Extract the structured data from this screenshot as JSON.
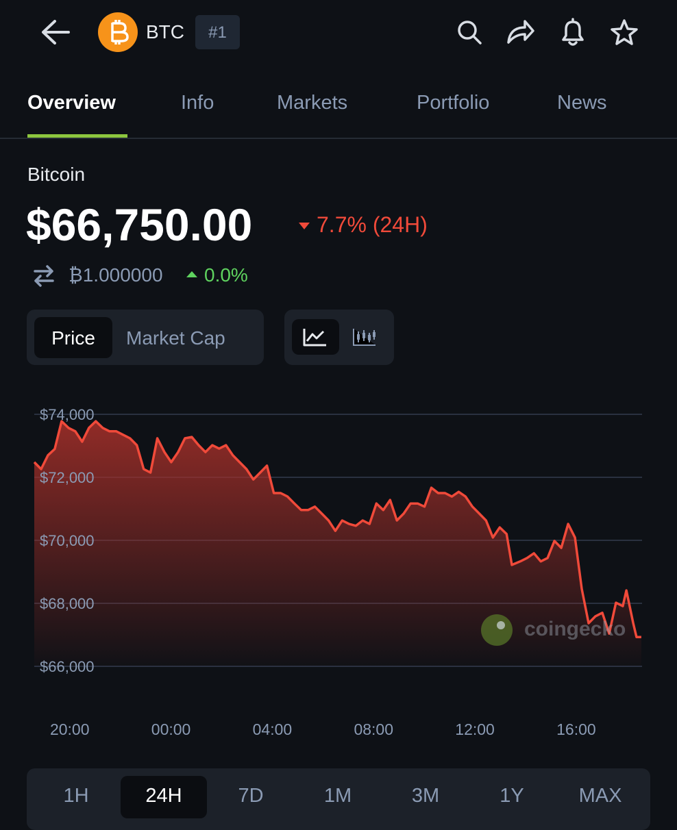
{
  "header": {
    "symbol": "BTC",
    "rank": "#1"
  },
  "tabs": [
    "Overview",
    "Info",
    "Markets",
    "Portfolio",
    "News"
  ],
  "coin": {
    "name": "Bitcoin",
    "price": "$66,750.00",
    "change": "7.7% (24H)",
    "btc_price": "₿1.000000",
    "btc_change": "0.0%"
  },
  "chart_toggle": [
    "Price",
    "Market Cap"
  ],
  "watermark": "coingecko",
  "ranges": [
    "1H",
    "24H",
    "7D",
    "1M",
    "3M",
    "1Y",
    "MAX"
  ],
  "chart_data": {
    "type": "area",
    "color": "#f04a3a",
    "grid": true,
    "x": [
      18.6,
      18.87,
      19.14,
      19.41,
      19.68,
      19.95,
      20.22,
      20.49,
      20.76,
      21.03,
      21.3,
      21.57,
      21.84,
      22.11,
      22.38,
      22.65,
      22.92,
      23.19,
      23.46,
      23.74,
      24.01,
      24.28,
      24.55,
      24.82,
      25.09,
      25.36,
      25.63,
      25.9,
      26.17,
      26.44,
      26.71,
      26.98,
      27.25,
      27.52,
      27.79,
      28.06,
      28.33,
      28.6,
      28.87,
      29.14,
      29.41,
      29.68,
      29.95,
      30.22,
      30.49,
      30.76,
      31.03,
      31.3,
      31.57,
      31.84,
      32.11,
      32.38,
      32.65,
      32.92,
      33.19,
      33.46,
      33.74,
      34.01,
      34.28,
      34.55,
      34.82,
      35.09,
      35.36,
      35.63,
      35.9,
      36.17,
      36.44,
      36.71,
      36.98,
      37.25,
      37.46,
      37.79,
      38.06,
      38.33,
      38.6,
      38.87,
      39.14,
      39.41,
      39.68,
      39.95,
      40.22,
      40.49,
      40.76,
      41.03,
      41.3,
      41.57,
      41.84,
      41.98,
      42.25,
      42.38,
      42.57
    ],
    "values": [
      72480,
      72260,
      72700,
      72900,
      73780,
      73570,
      73460,
      73130,
      73570,
      73780,
      73570,
      73460,
      73460,
      73350,
      73240,
      73020,
      72260,
      72150,
      73240,
      72800,
      72480,
      72800,
      73240,
      73280,
      73020,
      72800,
      73020,
      72910,
      73020,
      72700,
      72480,
      72260,
      71930,
      72150,
      72370,
      71500,
      71500,
      71390,
      71170,
      70960,
      70960,
      71070,
      70850,
      70630,
      70300,
      70630,
      70520,
      70460,
      70630,
      70520,
      71170,
      70960,
      71280,
      70630,
      70850,
      71170,
      71170,
      71070,
      71670,
      71500,
      71500,
      71390,
      71540,
      71390,
      71070,
      70850,
      70630,
      70090,
      70410,
      70200,
      69220,
      69330,
      69440,
      69590,
      69330,
      69440,
      69980,
      69760,
      70520,
      70090,
      68460,
      67370,
      67590,
      67700,
      67040,
      68020,
      67910,
      68410,
      67370,
      66930,
      66930
    ],
    "xlim": [
      18.6,
      42.6
    ],
    "xticks": [
      {
        "value": 20,
        "label": "20:00"
      },
      {
        "value": 24,
        "label": "00:00"
      },
      {
        "value": 28,
        "label": "04:00"
      },
      {
        "value": 32,
        "label": "08:00"
      },
      {
        "value": 36,
        "label": "12:00"
      },
      {
        "value": 40,
        "label": "16:00"
      }
    ],
    "ylim": [
      66000,
      74000
    ],
    "yticks": [
      {
        "value": 66000,
        "label": "$66,000"
      },
      {
        "value": 68000,
        "label": "$68,000"
      },
      {
        "value": 70000,
        "label": "$70,000"
      },
      {
        "value": 72000,
        "label": "$72,000"
      },
      {
        "value": 74000,
        "label": "$74,000"
      }
    ]
  }
}
